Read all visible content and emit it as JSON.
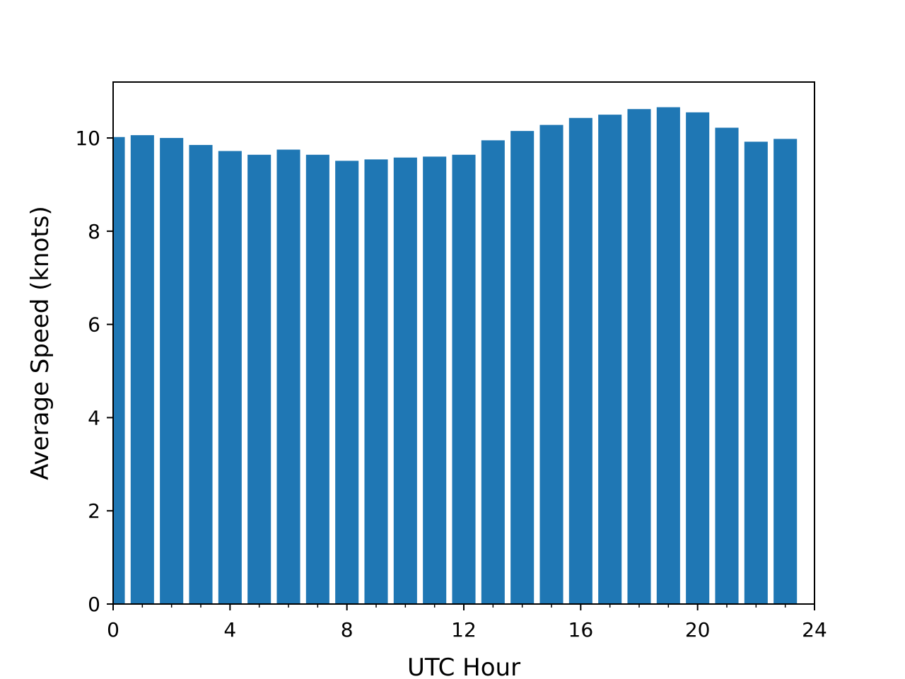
{
  "chart_data": {
    "type": "bar",
    "title": "",
    "xlabel": "UTC Hour",
    "ylabel": "Average Speed (knots)",
    "x": [
      0,
      1,
      2,
      3,
      4,
      5,
      6,
      7,
      8,
      9,
      10,
      11,
      12,
      13,
      14,
      15,
      16,
      17,
      18,
      19,
      20,
      21,
      22,
      23
    ],
    "values": [
      10.02,
      10.06,
      10.0,
      9.85,
      9.72,
      9.64,
      9.75,
      9.64,
      9.51,
      9.54,
      9.58,
      9.6,
      9.64,
      9.95,
      10.15,
      10.28,
      10.43,
      10.5,
      10.62,
      10.66,
      10.55,
      10.22,
      9.92,
      9.98
    ],
    "xlim": [
      0,
      24
    ],
    "ylim": [
      0,
      11.2
    ],
    "xticks": [
      0,
      4,
      8,
      12,
      16,
      20,
      24
    ],
    "xtick_labels": [
      "0",
      "4",
      "8",
      "12",
      "16",
      "20",
      "24"
    ],
    "yticks": [
      0,
      2,
      4,
      6,
      8,
      10
    ],
    "ytick_labels": [
      "0",
      "2",
      "4",
      "6",
      "8",
      "10"
    ],
    "x_minor_ticks": [
      1,
      2,
      3,
      5,
      6,
      7,
      9,
      10,
      11,
      13,
      14,
      15,
      17,
      18,
      19,
      21,
      22,
      23
    ],
    "bar_width": 0.8,
    "bar_color": "#1f77b4",
    "grid": false,
    "legend": "none"
  }
}
